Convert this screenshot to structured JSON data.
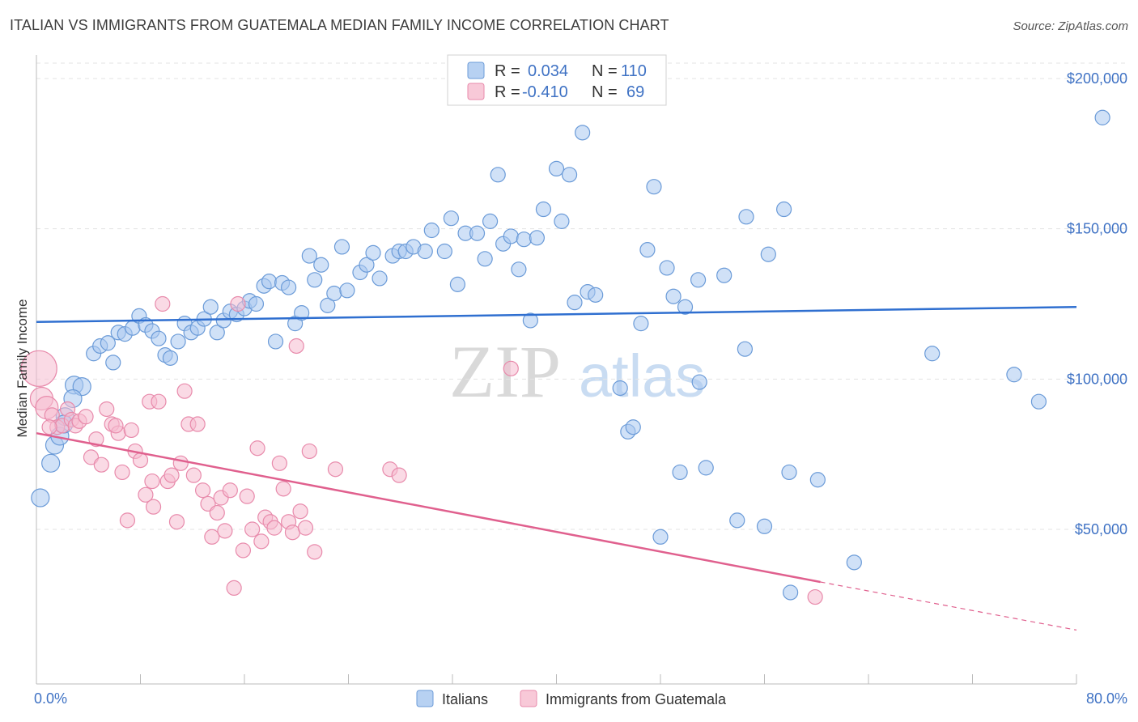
{
  "title": "ITALIAN VS IMMIGRANTS FROM GUATEMALA MEDIAN FAMILY INCOME CORRELATION CHART",
  "source": "Source: ZipAtlas.com",
  "watermark": {
    "zip": "ZIP",
    "atlas": "atlas"
  },
  "colors": {
    "blue_fill": "#a9c8f0",
    "blue_stroke": "#6b9bd8",
    "blue_line": "#2f6fd0",
    "pink_fill": "#f6bcd0",
    "pink_stroke": "#e88aab",
    "pink_line": "#e0608e",
    "text_blue": "#3f72c4"
  },
  "legend": {
    "rows": [
      {
        "r_label": "R =",
        "r_value": "0.034",
        "n_label": "N =",
        "n_value": "110",
        "series": "blue"
      },
      {
        "r_label": "R =",
        "r_value": "-0.410",
        "n_label": "N =",
        "n_value": "69",
        "series": "pink"
      }
    ]
  },
  "bottom_legend": [
    "Italians",
    "Immigrants from Guatemala"
  ],
  "chart_data": {
    "type": "scatter",
    "xlabel": "",
    "ylabel": "Median Family Income",
    "xlim": [
      0,
      80
    ],
    "ylim": [
      0,
      205000
    ],
    "x_tick_labels": [
      "0.0%",
      "80.0%"
    ],
    "y_ticks": [
      50000,
      100000,
      150000,
      200000
    ],
    "y_tick_labels": [
      "$50,000",
      "$100,000",
      "$150,000",
      "$200,000"
    ],
    "grid": true,
    "series": [
      {
        "name": "Italians",
        "color": "blue",
        "trend": {
          "x0": 0,
          "y0": 119000,
          "x1": 80,
          "y1": 124000
        },
        "points": [
          [
            0.3,
            60500
          ],
          [
            1.1,
            72000
          ],
          [
            1.4,
            78000
          ],
          [
            1.8,
            81000
          ],
          [
            2.2,
            87500
          ],
          [
            2.9,
            98000
          ],
          [
            3.5,
            97500
          ],
          [
            2.8,
            93500
          ],
          [
            4.4,
            108500
          ],
          [
            4.9,
            111000
          ],
          [
            5.5,
            112000
          ],
          [
            5.9,
            105500
          ],
          [
            6.3,
            115500
          ],
          [
            6.8,
            115000
          ],
          [
            7.4,
            117000
          ],
          [
            7.9,
            121000
          ],
          [
            8.4,
            118000
          ],
          [
            8.9,
            116000
          ],
          [
            9.4,
            113500
          ],
          [
            9.9,
            108000
          ],
          [
            10.3,
            107000
          ],
          [
            10.9,
            112500
          ],
          [
            11.4,
            118500
          ],
          [
            11.9,
            115500
          ],
          [
            12.4,
            117000
          ],
          [
            12.9,
            120000
          ],
          [
            13.4,
            124000
          ],
          [
            13.9,
            115500
          ],
          [
            14.4,
            119500
          ],
          [
            14.9,
            122500
          ],
          [
            15.4,
            121500
          ],
          [
            16.0,
            123500
          ],
          [
            16.4,
            126000
          ],
          [
            16.9,
            125000
          ],
          [
            17.5,
            131000
          ],
          [
            17.9,
            132500
          ],
          [
            18.4,
            112500
          ],
          [
            18.9,
            132000
          ],
          [
            19.4,
            130500
          ],
          [
            19.9,
            118500
          ],
          [
            20.4,
            122000
          ],
          [
            21.0,
            141000
          ],
          [
            21.4,
            133000
          ],
          [
            21.9,
            138000
          ],
          [
            22.4,
            124500
          ],
          [
            22.9,
            128500
          ],
          [
            23.5,
            144000
          ],
          [
            23.9,
            129500
          ],
          [
            24.9,
            135500
          ],
          [
            25.4,
            138000
          ],
          [
            25.9,
            142000
          ],
          [
            26.4,
            133500
          ],
          [
            27.4,
            141000
          ],
          [
            27.9,
            142500
          ],
          [
            28.4,
            142500
          ],
          [
            29.0,
            144000
          ],
          [
            29.9,
            142500
          ],
          [
            30.4,
            149500
          ],
          [
            31.4,
            142500
          ],
          [
            31.9,
            153500
          ],
          [
            32.4,
            131500
          ],
          [
            33.0,
            148500
          ],
          [
            33.9,
            148500
          ],
          [
            34.5,
            140000
          ],
          [
            34.9,
            152500
          ],
          [
            35.5,
            168000
          ],
          [
            35.9,
            145000
          ],
          [
            36.5,
            147500
          ],
          [
            37.1,
            136500
          ],
          [
            37.5,
            146500
          ],
          [
            38.0,
            119500
          ],
          [
            38.5,
            147000
          ],
          [
            39.0,
            156500
          ],
          [
            40.0,
            170000
          ],
          [
            40.4,
            152500
          ],
          [
            41.0,
            168000
          ],
          [
            41.4,
            125500
          ],
          [
            42.0,
            182000
          ],
          [
            42.4,
            129000
          ],
          [
            43.0,
            128000
          ],
          [
            44.9,
            97000
          ],
          [
            45.5,
            82500
          ],
          [
            45.9,
            84000
          ],
          [
            47.5,
            164000
          ],
          [
            46.5,
            118500
          ],
          [
            47.0,
            143000
          ],
          [
            48.0,
            47500
          ],
          [
            48.5,
            137000
          ],
          [
            49.0,
            127500
          ],
          [
            49.5,
            69000
          ],
          [
            49.9,
            124000
          ],
          [
            50.9,
            133000
          ],
          [
            51.0,
            99000
          ],
          [
            51.5,
            70500
          ],
          [
            52.9,
            134500
          ],
          [
            53.9,
            53000
          ],
          [
            54.5,
            110000
          ],
          [
            54.6,
            154000
          ],
          [
            56.0,
            51000
          ],
          [
            56.3,
            141500
          ],
          [
            57.5,
            156500
          ],
          [
            57.9,
            69000
          ],
          [
            58.0,
            29000
          ],
          [
            60.1,
            66500
          ],
          [
            62.9,
            39000
          ],
          [
            68.9,
            108500
          ],
          [
            75.2,
            101500
          ],
          [
            77.1,
            92500
          ],
          [
            82.0,
            187000
          ],
          [
            2.1,
            85000
          ]
        ]
      },
      {
        "name": "Immigrants from Guatemala",
        "color": "pink",
        "trend": {
          "x0": 0,
          "y0": 82000,
          "x1": 60.3,
          "y1": 32500,
          "dash_x1": 80,
          "dash_y1": 16500
        },
        "points": [
          [
            0.2,
            103500
          ],
          [
            0.4,
            93500
          ],
          [
            0.8,
            90500
          ],
          [
            1.2,
            88000
          ],
          [
            1.6,
            84000
          ],
          [
            2.0,
            84500
          ],
          [
            2.4,
            90000
          ],
          [
            2.7,
            86500
          ],
          [
            3.0,
            84500
          ],
          [
            3.3,
            86000
          ],
          [
            3.8,
            87500
          ],
          [
            4.2,
            74000
          ],
          [
            4.6,
            80000
          ],
          [
            5.0,
            71500
          ],
          [
            5.4,
            90000
          ],
          [
            5.8,
            85000
          ],
          [
            6.3,
            82000
          ],
          [
            6.6,
            69000
          ],
          [
            7.0,
            53000
          ],
          [
            7.3,
            83000
          ],
          [
            7.6,
            76000
          ],
          [
            8.0,
            73000
          ],
          [
            8.4,
            61500
          ],
          [
            8.7,
            92500
          ],
          [
            9.0,
            57500
          ],
          [
            9.4,
            92500
          ],
          [
            9.7,
            125000
          ],
          [
            10.1,
            66000
          ],
          [
            10.4,
            68000
          ],
          [
            10.8,
            52500
          ],
          [
            11.1,
            72000
          ],
          [
            11.4,
            96000
          ],
          [
            11.7,
            85000
          ],
          [
            12.1,
            68000
          ],
          [
            12.4,
            85000
          ],
          [
            12.8,
            63000
          ],
          [
            13.2,
            58500
          ],
          [
            13.5,
            47500
          ],
          [
            13.9,
            55500
          ],
          [
            14.2,
            60500
          ],
          [
            14.5,
            49500
          ],
          [
            14.9,
            63000
          ],
          [
            15.2,
            30500
          ],
          [
            15.5,
            125000
          ],
          [
            15.9,
            43000
          ],
          [
            16.2,
            61000
          ],
          [
            16.6,
            50000
          ],
          [
            17.0,
            77000
          ],
          [
            17.3,
            46000
          ],
          [
            17.6,
            54000
          ],
          [
            18.0,
            52500
          ],
          [
            18.3,
            50500
          ],
          [
            18.7,
            72000
          ],
          [
            19.0,
            63500
          ],
          [
            19.4,
            52500
          ],
          [
            19.7,
            49000
          ],
          [
            20.0,
            111000
          ],
          [
            20.3,
            56000
          ],
          [
            20.7,
            50500
          ],
          [
            21.0,
            76000
          ],
          [
            21.4,
            42500
          ],
          [
            23.0,
            70000
          ],
          [
            27.2,
            70000
          ],
          [
            27.9,
            68000
          ],
          [
            36.5,
            103500
          ],
          [
            59.9,
            27500
          ],
          [
            6.1,
            84500
          ],
          [
            8.9,
            66000
          ],
          [
            1.0,
            84000
          ]
        ]
      }
    ]
  }
}
